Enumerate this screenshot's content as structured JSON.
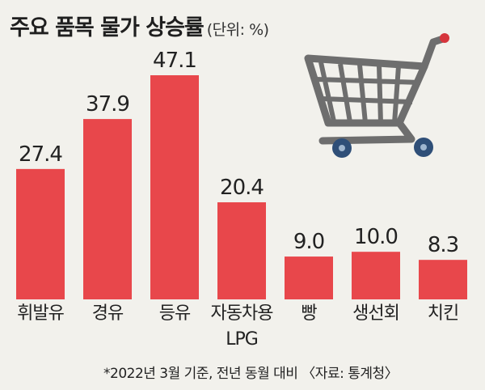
{
  "header": {
    "title": "주요 품목 물가 상승률",
    "unit": "(단위: %)"
  },
  "footnote": "*2022년 3월 기준, 전년 동월 대비 〈자료: 통계청〉",
  "colors": {
    "bar": "#e8474b",
    "background": "#f2f1ec"
  },
  "icons": {
    "cart": "shopping-cart-icon"
  },
  "chart_data": {
    "type": "bar",
    "title": "주요 품목 물가 상승률",
    "unit": "%",
    "categories": [
      "휘발유",
      "경유",
      "등유",
      "자동차용 LPG",
      "빵",
      "생선회",
      "치킨"
    ],
    "values": [
      27.4,
      37.9,
      47.1,
      20.4,
      9.0,
      10.0,
      8.3
    ],
    "value_labels": [
      "27.4",
      "37.9",
      "47.1",
      "20.4",
      "9.0",
      "10.0",
      "8.3"
    ],
    "grid": false,
    "legend": "none"
  }
}
